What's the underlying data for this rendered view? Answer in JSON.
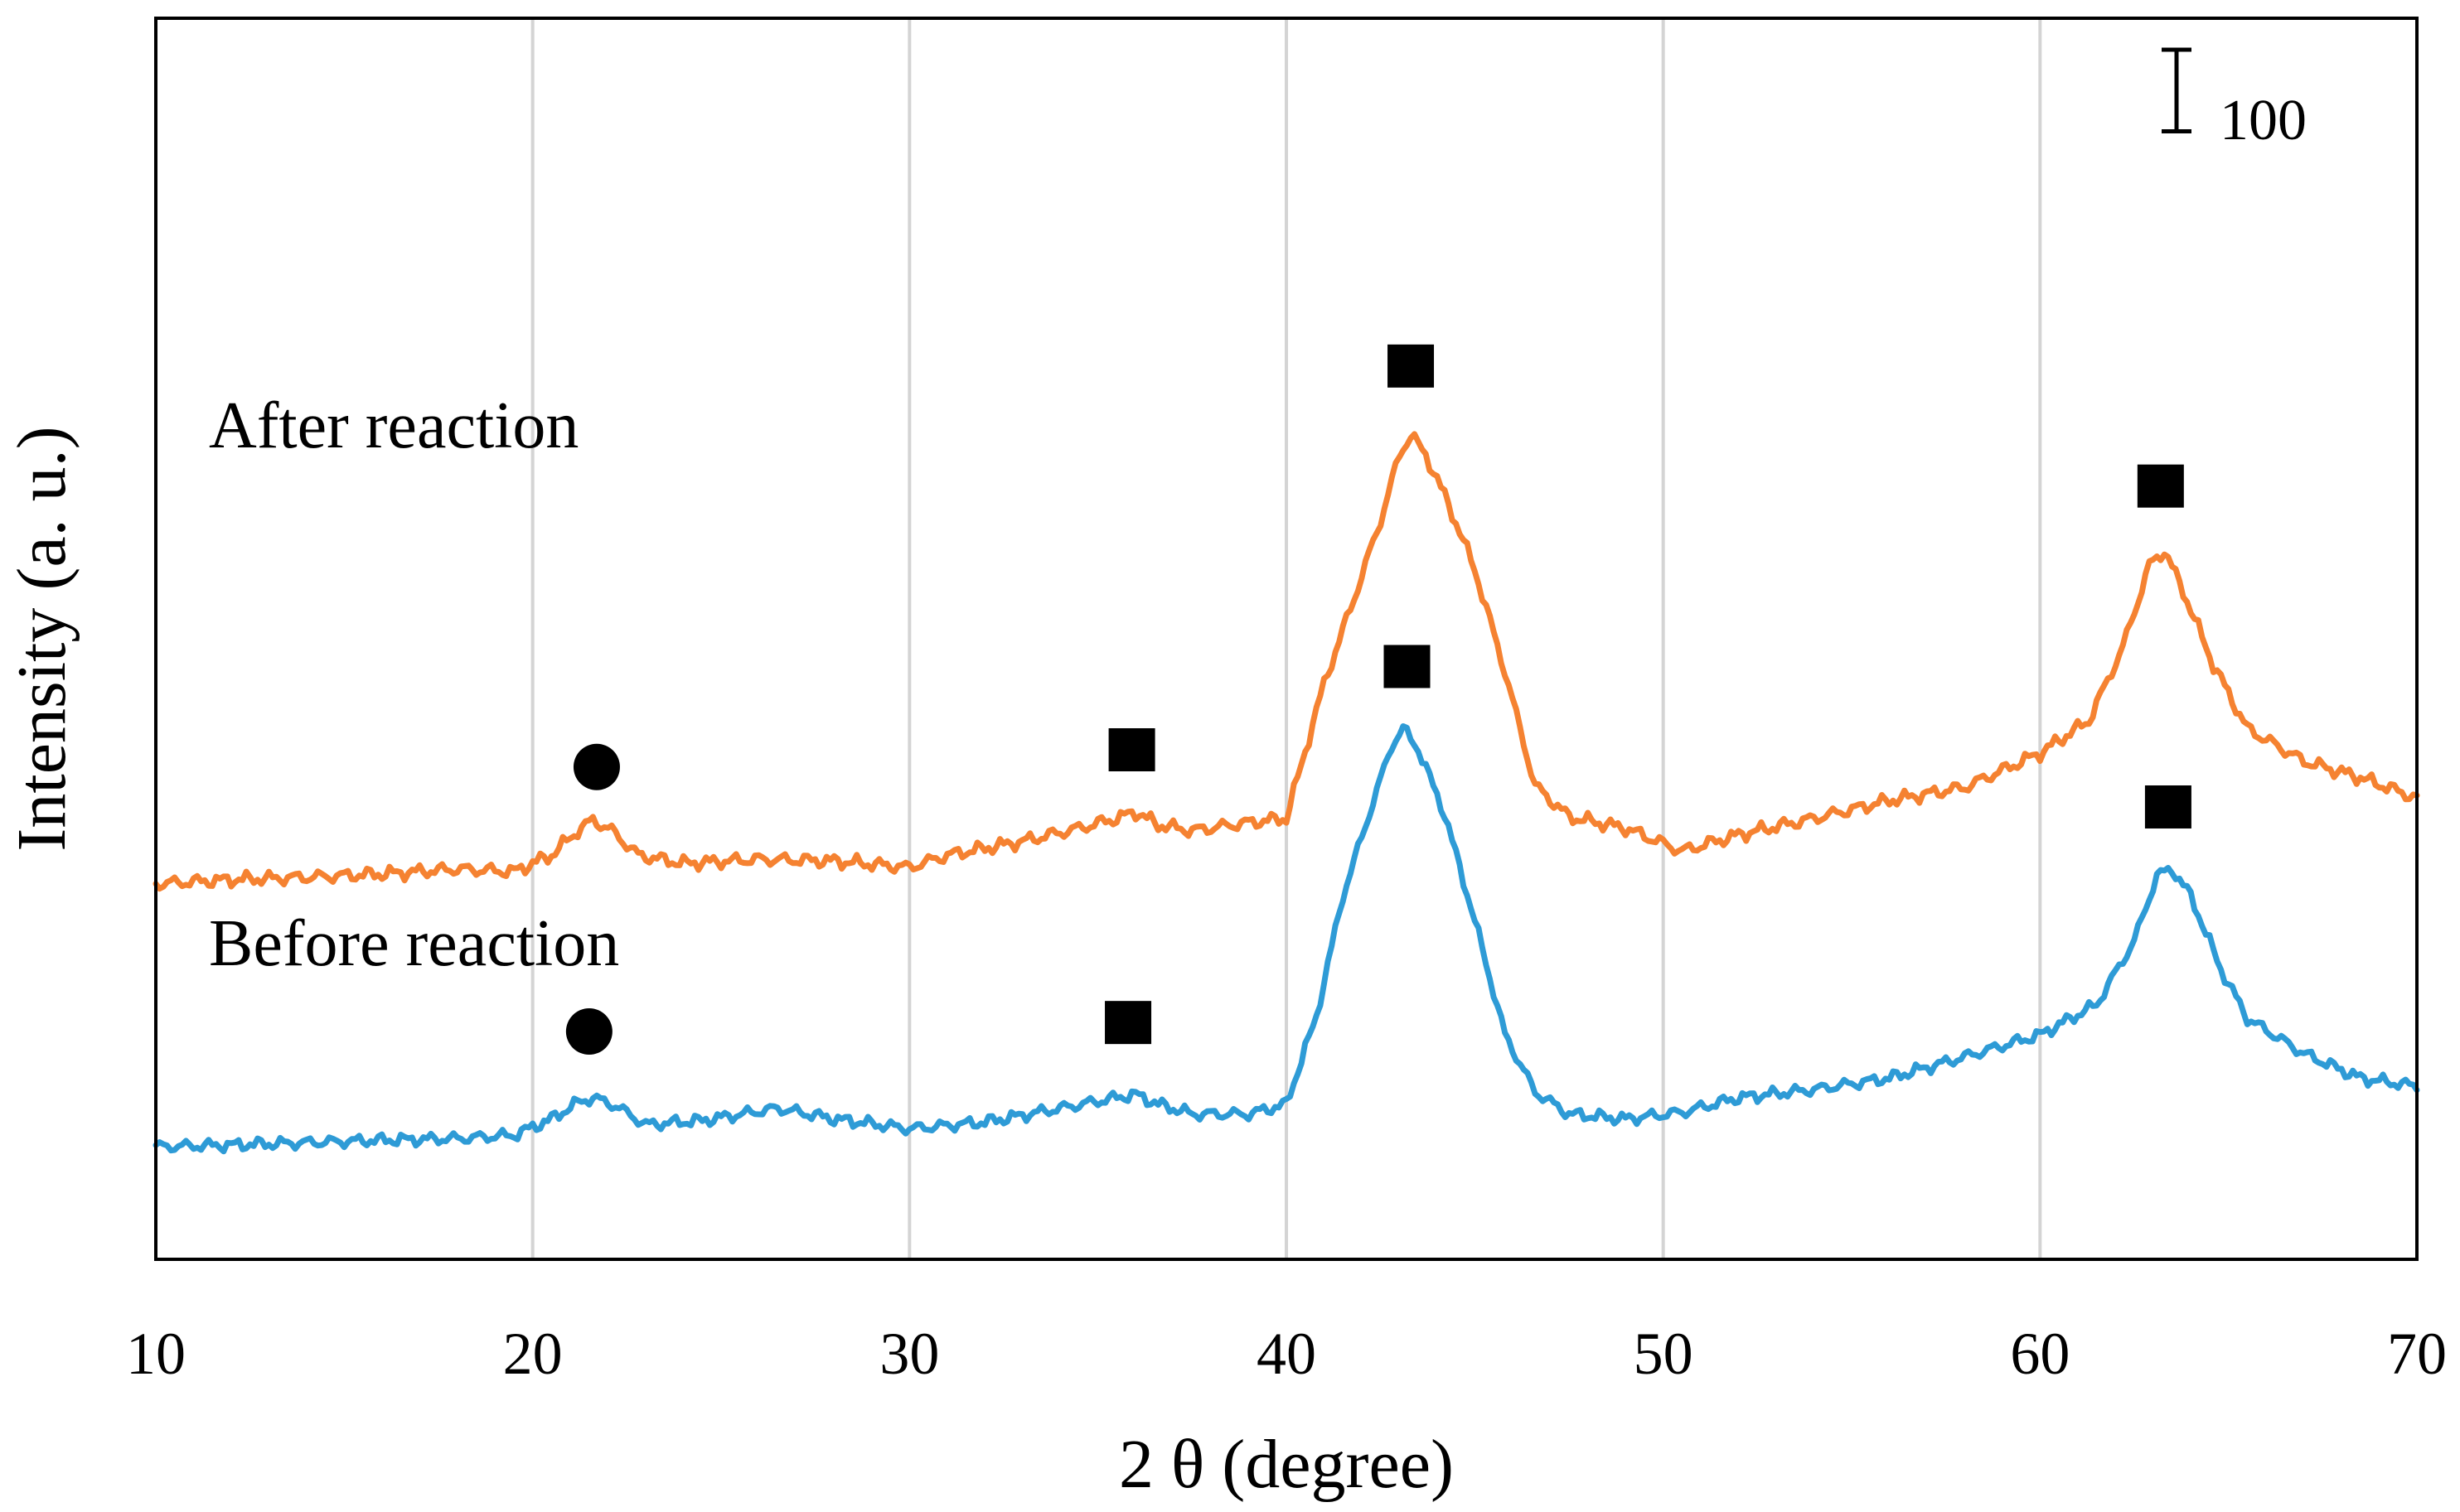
{
  "chart_data": {
    "type": "line",
    "title": "",
    "xlabel": "2 θ (degree)",
    "ylabel": "Intensity (a. u.)",
    "xlim": [
      10,
      70
    ],
    "ylim": [
      0,
      1520
    ],
    "xticks": [
      10,
      20,
      30,
      40,
      50,
      60,
      70
    ],
    "xtick_labels": [
      "10",
      "20",
      "30",
      "40",
      "50",
      "60",
      "70"
    ],
    "vertical_gridlines": true,
    "yticks_shown": false,
    "legend": "none",
    "scale_bar": {
      "label": "100",
      "value": 100
    },
    "series": [
      {
        "name": "After reaction",
        "label_text": "After reaction",
        "color": "#F58231",
        "x": [
          10,
          12,
          14,
          16,
          18,
          19.5,
          20.5,
          21.2,
          21.6,
          22.1,
          22.8,
          24,
          26,
          28,
          30,
          31,
          33,
          34.5,
          35.5,
          36,
          36.6,
          37.5,
          39,
          40,
          41,
          41.8,
          42.5,
          43,
          43.3,
          43.7,
          44.3,
          45,
          45.8,
          46.6,
          47.5,
          49,
          50.5,
          52,
          54,
          56,
          58,
          60,
          61.3,
          62.2,
          62.9,
          63.3,
          63.8,
          64.6,
          65.5,
          67,
          68.5,
          70
        ],
        "values": [
          460,
          465,
          468,
          472,
          478,
          475,
          495,
          525,
          538,
          525,
          495,
          485,
          490,
          488,
          480,
          495,
          512,
          528,
          540,
          548,
          532,
          525,
          535,
          540,
          705,
          810,
          905,
          985,
          1010,
          985,
          925,
          845,
          720,
          580,
          542,
          528,
          500,
          520,
          540,
          562,
          578,
          620,
          660,
          750,
          850,
          868,
          818,
          728,
          650,
          610,
          590,
          565
        ],
        "noise": 10
      },
      {
        "name": "Before reaction",
        "label_text": "Before reaction",
        "color": "#2E9BD6",
        "x": [
          10,
          12,
          14,
          16,
          18,
          19.5,
          20.5,
          21.2,
          21.6,
          22.2,
          23,
          24.5,
          26.5,
          28,
          30,
          32,
          34,
          35.5,
          36,
          36.6,
          37.5,
          39,
          40,
          40.8,
          41.5,
          42.3,
          42.8,
          43.1,
          43.5,
          44.2,
          45,
          45.8,
          46.6,
          47.5,
          49,
          50.5,
          52,
          54,
          56,
          58,
          60,
          61.5,
          62.5,
          63.1,
          63.5,
          64,
          64.8,
          65.5,
          67,
          68.5,
          70
        ],
        "values": [
          138,
          140,
          143,
          146,
          148,
          152,
          172,
          192,
          198,
          188,
          165,
          170,
          185,
          172,
          160,
          168,
          185,
          198,
          202,
          190,
          178,
          178,
          190,
          298,
          445,
          560,
          630,
          650,
          625,
          545,
          415,
          275,
          205,
          178,
          172,
          180,
          198,
          208,
          222,
          248,
          275,
          312,
          390,
          470,
          478,
          445,
          355,
          295,
          252,
          222,
          212
        ],
        "noise": 9
      }
    ],
    "markers": [
      {
        "series": "After reaction",
        "shape": "circle",
        "x": 21.7,
        "y": 603
      },
      {
        "series": "After reaction",
        "shape": "square",
        "x": 35.9,
        "y": 622
      },
      {
        "series": "After reaction",
        "shape": "square",
        "x": 43.3,
        "y": 1092
      },
      {
        "series": "After reaction",
        "shape": "square",
        "x": 63.2,
        "y": 945
      },
      {
        "series": "Before reaction",
        "shape": "circle",
        "x": 21.5,
        "y": 279
      },
      {
        "series": "Before reaction",
        "shape": "square",
        "x": 35.8,
        "y": 288
      },
      {
        "series": "Before reaction",
        "shape": "square",
        "x": 43.2,
        "y": 724
      },
      {
        "series": "Before reaction",
        "shape": "square",
        "x": 63.4,
        "y": 552
      }
    ]
  }
}
